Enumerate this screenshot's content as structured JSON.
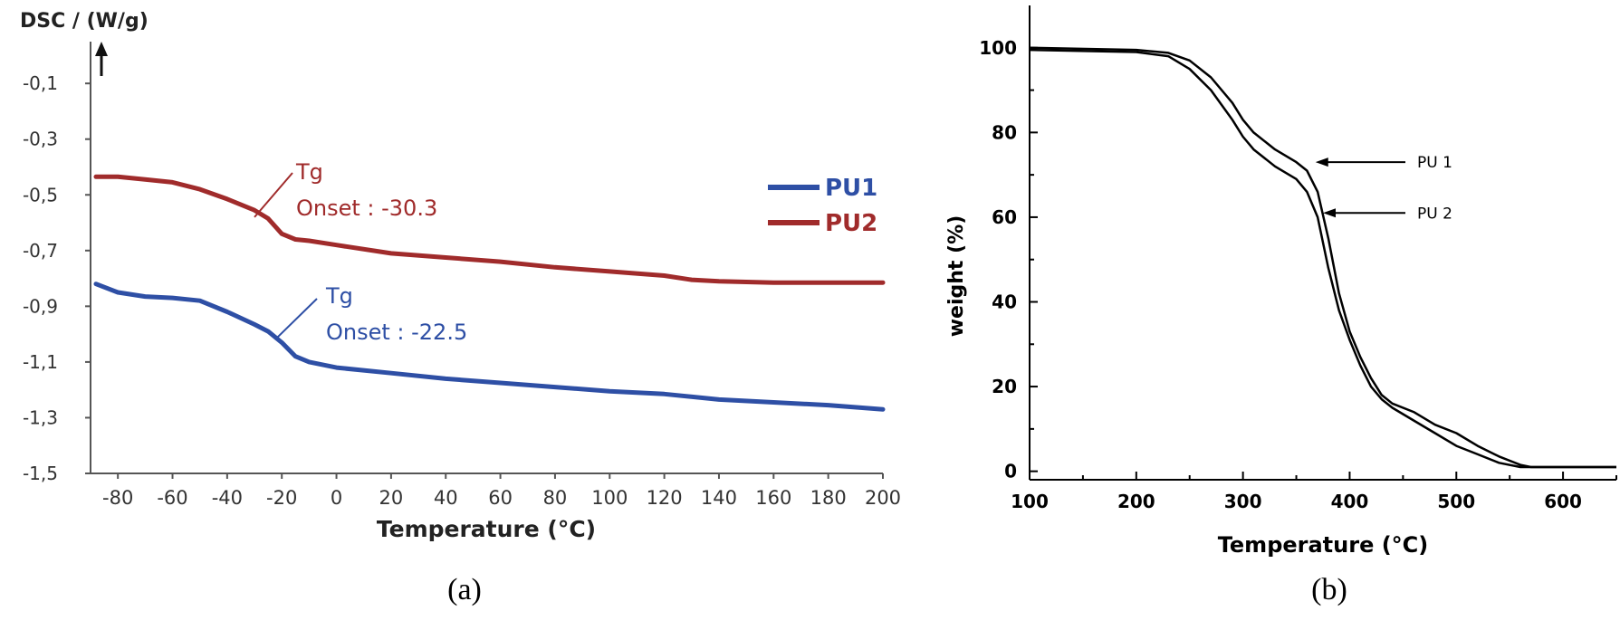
{
  "chart_data": [
    {
      "panel_label": "(a)",
      "type": "line",
      "ylabel": "DSC / (W/g)",
      "xlabel": "Temperature (°C)",
      "xlim": [
        -90,
        200
      ],
      "ylim": [
        -1.5,
        0.05
      ],
      "x_ticks": [
        -80,
        -60,
        -40,
        -20,
        0,
        20,
        40,
        60,
        80,
        100,
        120,
        140,
        160,
        180,
        200
      ],
      "y_ticks": [
        -0.1,
        -0.3,
        -0.5,
        -0.7,
        -0.9,
        -1.1,
        -1.3,
        -1.5
      ],
      "y_tick_labels": [
        "-0,1",
        "-0,3",
        "-0,5",
        "-0,7",
        "-0,9",
        "-1,1",
        "-1,3",
        "-1,5"
      ],
      "legend": {
        "placement": "right",
        "entries": [
          "PU1",
          "PU2"
        ]
      },
      "series": [
        {
          "name": "PU1",
          "color": "#2e4fa5",
          "x": [
            -88,
            -80,
            -70,
            -60,
            -50,
            -40,
            -30,
            -25,
            -20,
            -15,
            -10,
            0,
            20,
            40,
            60,
            80,
            100,
            120,
            140,
            160,
            180,
            200
          ],
          "y": [
            -0.82,
            -0.85,
            -0.865,
            -0.87,
            -0.88,
            -0.92,
            -0.965,
            -0.99,
            -1.03,
            -1.08,
            -1.1,
            -1.12,
            -1.14,
            -1.16,
            -1.175,
            -1.19,
            -1.205,
            -1.215,
            -1.235,
            -1.245,
            -1.255,
            -1.27
          ]
        },
        {
          "name": "PU2",
          "color": "#a02b2b",
          "x": [
            -88,
            -80,
            -70,
            -60,
            -50,
            -40,
            -30,
            -25,
            -20,
            -15,
            -10,
            0,
            20,
            40,
            60,
            80,
            100,
            120,
            130,
            140,
            160,
            180,
            200
          ],
          "y": [
            -0.435,
            -0.435,
            -0.445,
            -0.455,
            -0.48,
            -0.515,
            -0.555,
            -0.585,
            -0.64,
            -0.66,
            -0.665,
            -0.68,
            -0.71,
            -0.725,
            -0.74,
            -0.76,
            -0.775,
            -0.79,
            -0.805,
            -0.81,
            -0.815,
            -0.815,
            -0.815
          ]
        }
      ],
      "annotations": [
        {
          "series": "PU2",
          "lines": [
            "Tg",
            "Onset : -30.3"
          ],
          "color": "#a02b2b",
          "point": [
            -30,
            -0.58
          ]
        },
        {
          "series": "PU1",
          "lines": [
            "Tg",
            "Onset : -22.5"
          ],
          "color": "#2e4fa5",
          "point": [
            -22.5,
            -1.02
          ]
        }
      ]
    },
    {
      "panel_label": "(b)",
      "type": "line",
      "ylabel": "weight (%)",
      "xlabel": "Temperature (°C)",
      "xlim": [
        100,
        650
      ],
      "ylim": [
        -2,
        110
      ],
      "x_ticks": [
        100,
        200,
        300,
        400,
        500,
        600
      ],
      "y_ticks": [
        0,
        20,
        40,
        60,
        80,
        100
      ],
      "series": [
        {
          "name": "PU 1",
          "color": "#000000",
          "x": [
            100,
            200,
            230,
            250,
            270,
            290,
            300,
            310,
            330,
            350,
            360,
            370,
            380,
            390,
            400,
            410,
            420,
            430,
            440,
            460,
            480,
            500,
            520,
            540,
            560,
            570,
            580,
            600,
            650
          ],
          "y": [
            100,
            99.5,
            98.8,
            97,
            93,
            87,
            83,
            80,
            76,
            73,
            71,
            66,
            55,
            42,
            33,
            27,
            22,
            18,
            16,
            14,
            11,
            9,
            6,
            3.5,
            1.5,
            1,
            1,
            1,
            1
          ]
        },
        {
          "name": "PU 2",
          "color": "#000000",
          "x": [
            100,
            200,
            230,
            250,
            270,
            290,
            300,
            310,
            330,
            350,
            360,
            370,
            380,
            390,
            400,
            410,
            420,
            430,
            440,
            460,
            480,
            500,
            520,
            540,
            560,
            580,
            600,
            650
          ],
          "y": [
            99.5,
            99,
            98,
            95,
            90,
            83,
            79,
            76,
            72,
            69,
            66,
            60,
            48,
            38,
            31,
            25,
            20,
            17,
            15,
            12,
            9,
            6,
            4,
            2,
            1,
            1,
            1,
            1
          ]
        }
      ],
      "annotations": [
        {
          "label": "PU 1",
          "point": [
            368,
            73
          ]
        },
        {
          "label": "PU 2",
          "point": [
            375,
            61
          ]
        }
      ]
    }
  ]
}
